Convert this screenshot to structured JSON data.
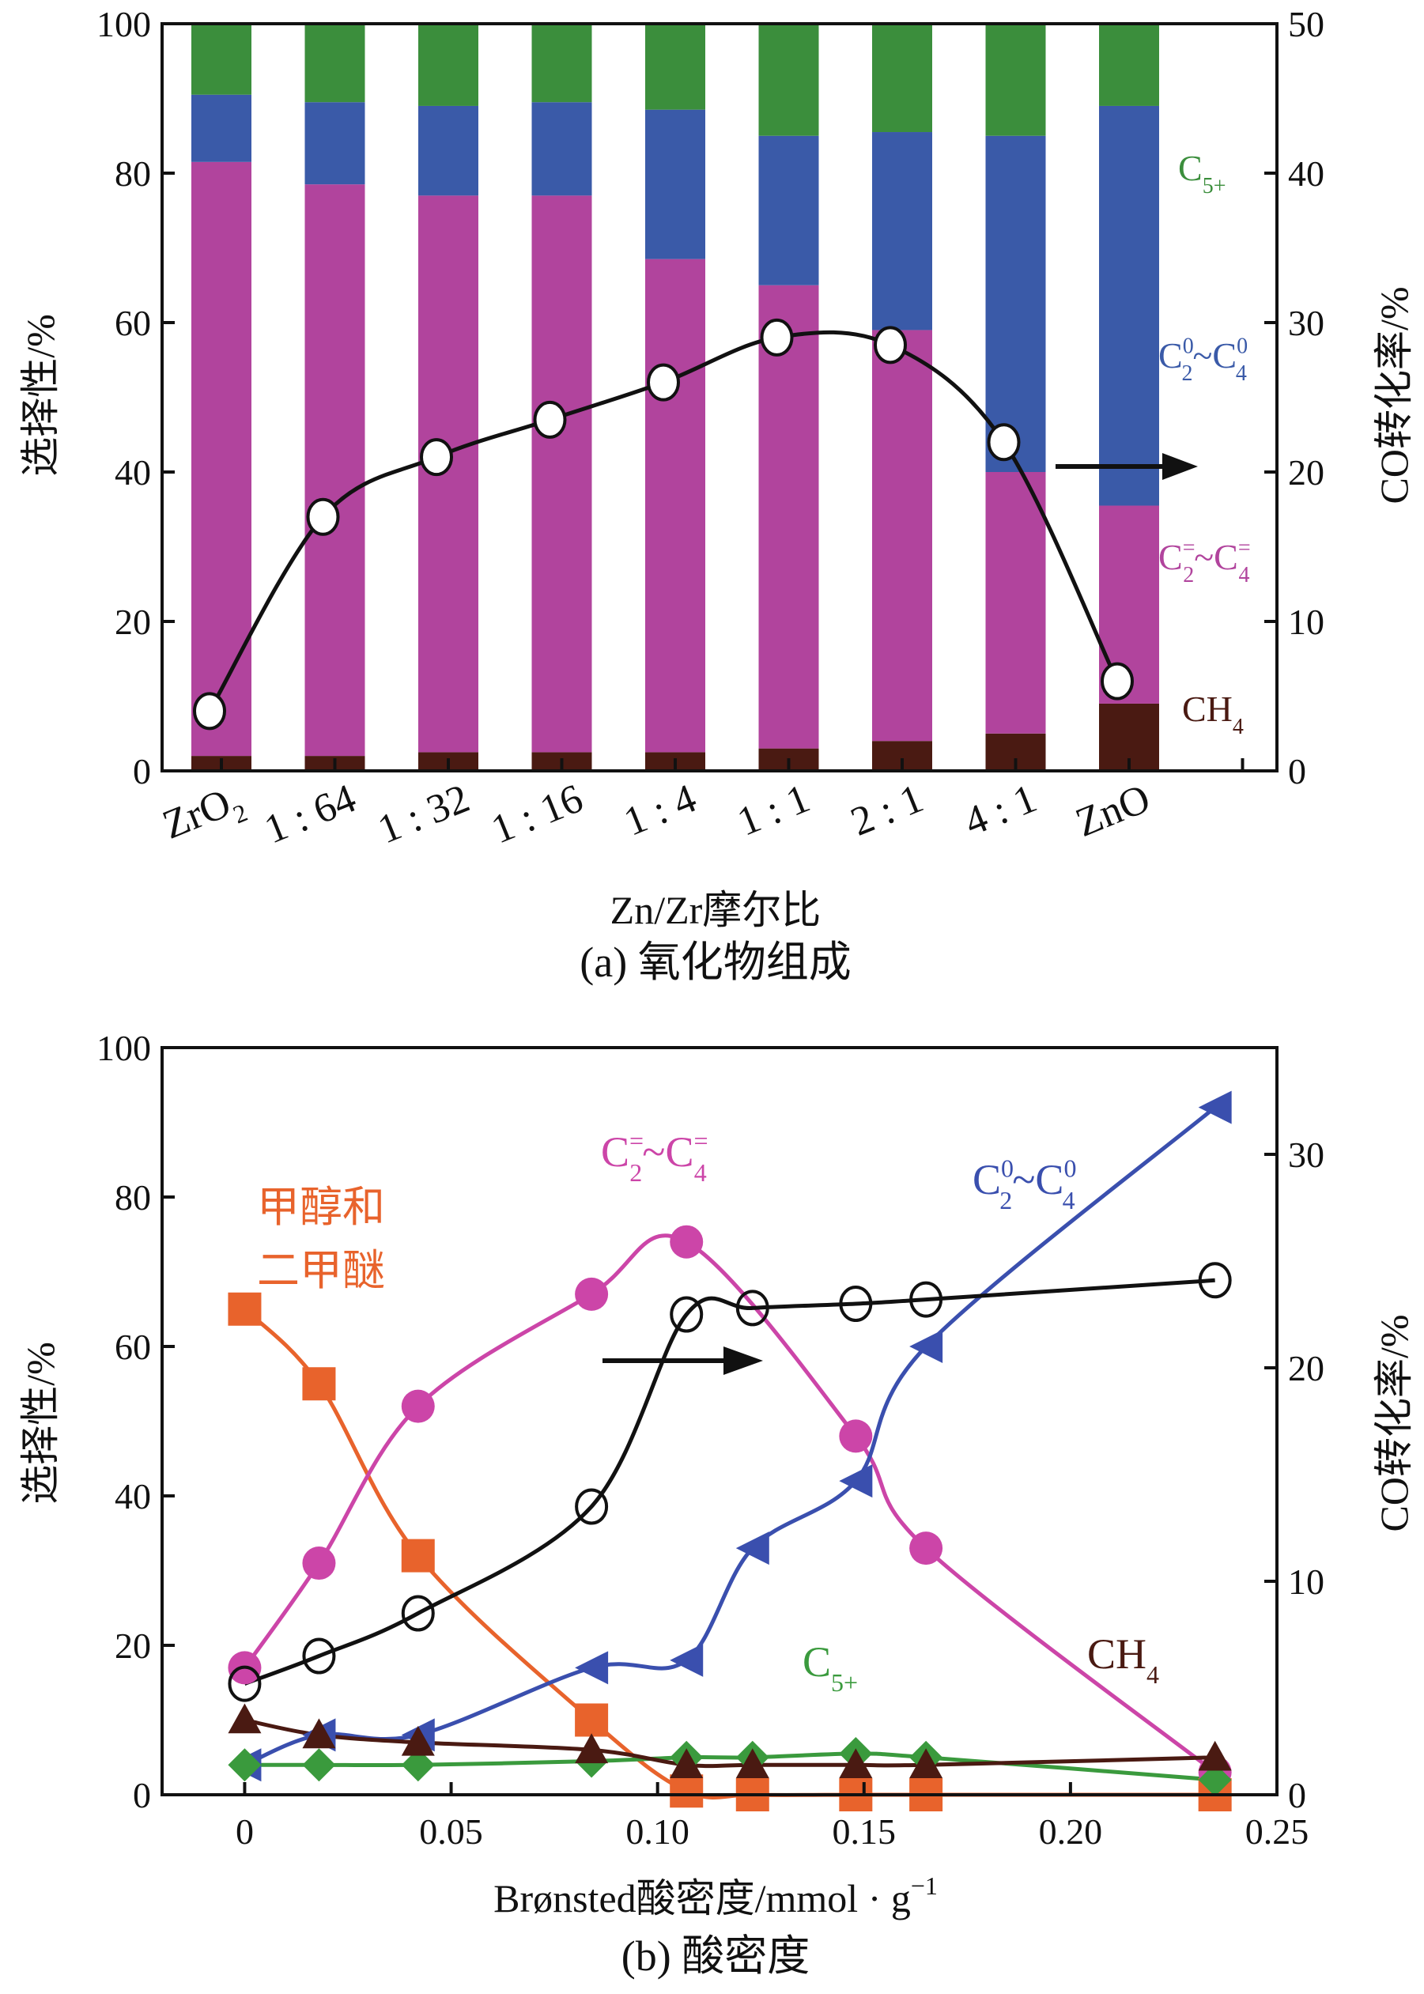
{
  "chart_data": [
    {
      "id": "a",
      "type": "bar",
      "stacked": true,
      "title": "(a) 氧化物组成",
      "xlabel": "Zn/Zr摩尔比",
      "ylabel": "选择性/%",
      "ylabel_right": "CO转化率/%",
      "ylim": [
        0,
        100
      ],
      "ylim_right": [
        0,
        50
      ],
      "yticks": [
        "0",
        "20",
        "40",
        "60",
        "80",
        "100"
      ],
      "yticks_right": [
        "0",
        "10",
        "20",
        "30",
        "40",
        "50"
      ],
      "categories": [
        "ZrO2",
        "1:64",
        "1:32",
        "1:16",
        "1:4",
        "1:1",
        "2:1",
        "4:1",
        "ZnO"
      ],
      "category_labels": [
        {
          "base": "ZrO",
          "sub": "2"
        },
        {
          "base": "1 : 64",
          "sub": ""
        },
        {
          "base": "1 : 32",
          "sub": ""
        },
        {
          "base": "1 : 16",
          "sub": ""
        },
        {
          "base": "1 : 4",
          "sub": ""
        },
        {
          "base": "1 : 1",
          "sub": ""
        },
        {
          "base": "2 : 1",
          "sub": ""
        },
        {
          "base": "4 : 1",
          "sub": ""
        },
        {
          "base": "ZnO",
          "sub": ""
        }
      ],
      "series": [
        {
          "name": "CH4",
          "label_parts": [
            [
              "CH",
              ""
            ],
            [
              "4",
              "sub"
            ]
          ],
          "color": "#4a1a12",
          "values": [
            2,
            2,
            2.5,
            2.5,
            2.5,
            3,
            4,
            5,
            9
          ]
        },
        {
          "name": "C2=~C4=",
          "label_parts": [
            [
              "C",
              ""
            ],
            [
              "=",
              "sup"
            ],
            [
              "2",
              "sub"
            ],
            [
              "~C",
              ""
            ],
            [
              "=",
              "sup"
            ],
            [
              "4",
              "sub"
            ]
          ],
          "color": "#b1449d",
          "values": [
            79.5,
            76.5,
            74.5,
            74.5,
            66,
            62,
            55,
            35,
            26.5
          ]
        },
        {
          "name": "C2^0~C4^0",
          "label_parts": [
            [
              "C",
              ""
            ],
            [
              "0",
              "sup"
            ],
            [
              "2",
              "sub"
            ],
            [
              "~C",
              ""
            ],
            [
              "0",
              "sup"
            ],
            [
              "4",
              "sub"
            ]
          ],
          "color": "#3a5aa8",
          "values": [
            9,
            11,
            12,
            12.5,
            20,
            20,
            26.5,
            45,
            53.5
          ]
        },
        {
          "name": "C5+",
          "label_parts": [
            [
              "C",
              ""
            ],
            [
              "5+",
              "sub"
            ]
          ],
          "color": "#3b8e3c",
          "values": [
            9.5,
            10.5,
            11,
            10.5,
            11.5,
            15,
            14.5,
            15,
            11
          ]
        }
      ],
      "co_conversion": {
        "name": "CO转化率",
        "axis": "right",
        "values": [
          4,
          17,
          21,
          23.5,
          26,
          29,
          28.5,
          22,
          6
        ]
      },
      "annotation": "arrow points to right axis"
    },
    {
      "id": "b",
      "type": "line",
      "title": "(b) 酸密度",
      "xlabel": "Brønsted酸密度/mmol · g",
      "xlabel_sup": "−1",
      "ylabel": "选择性/%",
      "ylabel_right": "CO转化率/%",
      "xlim": [
        -0.02,
        0.25
      ],
      "ylim": [
        0,
        100
      ],
      "ylim_right": [
        0,
        35
      ],
      "xticks": [
        0,
        0.05,
        0.1,
        0.15,
        0.2,
        0.25
      ],
      "xtick_labels": [
        "0",
        "0.05",
        "0.10",
        "0.15",
        "0.20",
        "0.25"
      ],
      "yticks": [
        "0",
        "20",
        "40",
        "60",
        "80",
        "100"
      ],
      "yticks_right": [
        0,
        10,
        20,
        30
      ],
      "ytick_right_labels": [
        "0",
        "10",
        "20",
        "30"
      ],
      "series": [
        {
          "name": "甲醇和二甲醚",
          "label_lines": [
            "甲醇和",
            "二甲醚"
          ],
          "color": "#e8632c",
          "marker": "square",
          "axis": "left",
          "x": [
            0,
            0.018,
            0.042,
            0.084,
            0.107,
            0.123,
            0.148,
            0.165,
            0.235
          ],
          "y": [
            65,
            55,
            32,
            10,
            0.5,
            0,
            0,
            0,
            0
          ]
        },
        {
          "name": "C2=~C4=",
          "label_parts": [
            [
              "C",
              ""
            ],
            [
              "=",
              "sup"
            ],
            [
              "2",
              "sub"
            ],
            [
              "~C",
              ""
            ],
            [
              "=",
              "sup"
            ],
            [
              "4",
              "sub"
            ]
          ],
          "color": "#cc45a8",
          "marker": "circle",
          "axis": "left",
          "x": [
            0,
            0.018,
            0.042,
            0.084,
            0.107,
            0.148,
            0.165,
            0.235
          ],
          "y": [
            17,
            31,
            52,
            67,
            74,
            48,
            33,
            3
          ]
        },
        {
          "name": "C2^0~C4^0",
          "label_parts": [
            [
              "C",
              ""
            ],
            [
              "0",
              "sup"
            ],
            [
              "2",
              "sub"
            ],
            [
              "~C",
              ""
            ],
            [
              "0",
              "sup"
            ],
            [
              "4",
              "sub"
            ]
          ],
          "color": "#3a4fae",
          "marker": "triangle-left",
          "axis": "left",
          "x": [
            0,
            0.018,
            0.042,
            0.084,
            0.107,
            0.123,
            0.148,
            0.165,
            0.235
          ],
          "y": [
            4,
            8,
            8,
            17,
            18,
            33,
            42,
            60,
            92
          ]
        },
        {
          "name": "C5+",
          "label_parts": [
            [
              "C",
              ""
            ],
            [
              "5+",
              "sub"
            ]
          ],
          "color": "#3a9a3d",
          "marker": "diamond",
          "axis": "left",
          "x": [
            0,
            0.018,
            0.042,
            0.084,
            0.107,
            0.123,
            0.148,
            0.165,
            0.235
          ],
          "y": [
            4,
            4,
            4,
            4.5,
            5,
            5,
            5.5,
            5,
            2
          ]
        },
        {
          "name": "CH4",
          "label_parts": [
            [
              "CH",
              ""
            ],
            [
              "4",
              "sub"
            ]
          ],
          "color": "#4a1a12",
          "marker": "triangle-up",
          "axis": "left",
          "x": [
            0,
            0.018,
            0.042,
            0.084,
            0.107,
            0.123,
            0.148,
            0.165,
            0.235
          ],
          "y": [
            10,
            8,
            7,
            6,
            4,
            4,
            4,
            4,
            5
          ]
        },
        {
          "name": "CO转化率",
          "color": "#111111",
          "marker": "open-circle",
          "axis": "right",
          "x": [
            0,
            0.018,
            0.042,
            0.084,
            0.107,
            0.123,
            0.148,
            0.165,
            0.235
          ],
          "y": [
            5.2,
            6.5,
            8.5,
            13.5,
            22.5,
            22.8,
            23,
            23.2,
            24.1
          ]
        }
      ],
      "annotation": "arrow points to right axis"
    }
  ]
}
